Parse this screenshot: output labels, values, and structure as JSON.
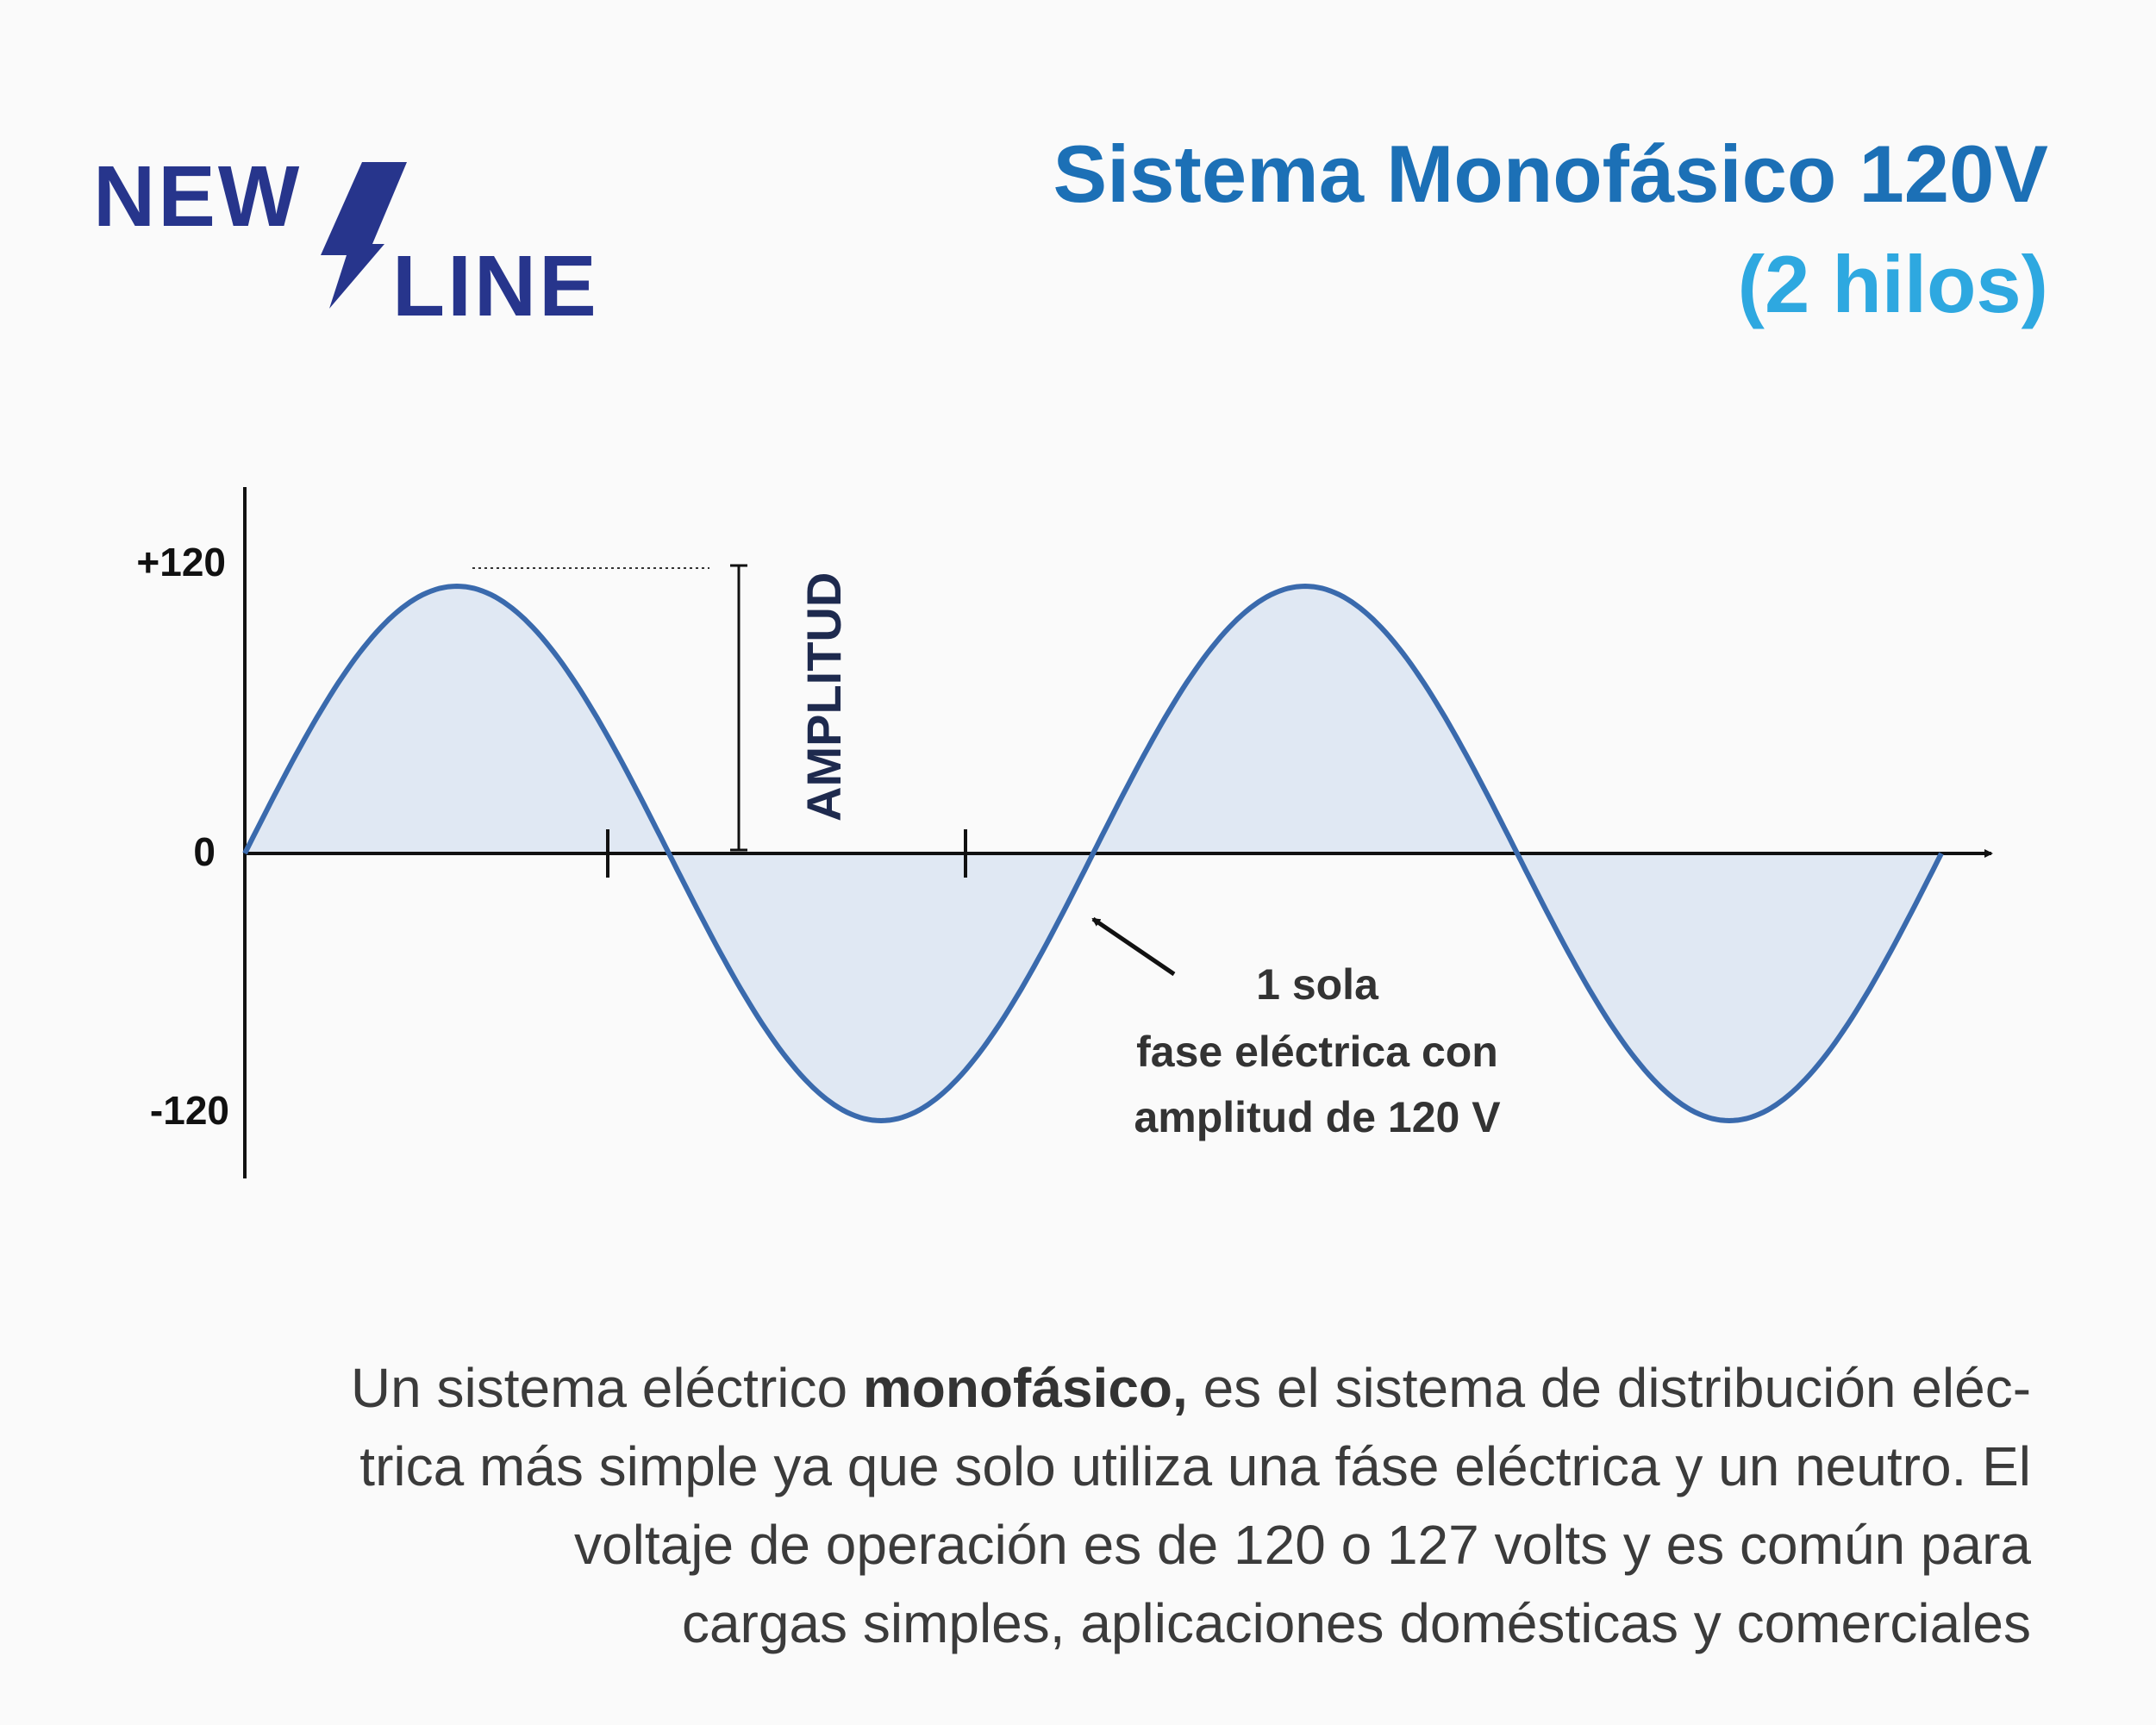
{
  "logo": {
    "word1": "NEW",
    "word2": "LINE",
    "color": "#27358c",
    "icon": "lightning-bolt-icon"
  },
  "title": {
    "main": "Sistema Monofásico 120V",
    "sub": "(2 hilos)",
    "main_color": "#1c70b6",
    "sub_color": "#2ea8e0"
  },
  "diagram": {
    "y_labels": [
      "+120",
      "0",
      "-120"
    ],
    "amplitude_label": "AMPLITUD",
    "annotation_lines": [
      "1 sola",
      "fase eléctrica con",
      "amplitud de 120 V"
    ],
    "wave_color": "#3a6aad",
    "fill_color": "#e0e8f3",
    "cycles": 2,
    "amplitude": 120
  },
  "description": {
    "prefix": "Un sistema eléctrico ",
    "bold": "monofásico,",
    "line1_rest": " es el sistema de distribución eléc-",
    "line2": "trica más simple ya que solo utiliza una fáse eléctrica y un neutro. El",
    "line3": "voltaje de operación es de 120 o 127 volts y es común para",
    "line4": "cargas simples, aplicaciones domésticas y comerciales"
  }
}
